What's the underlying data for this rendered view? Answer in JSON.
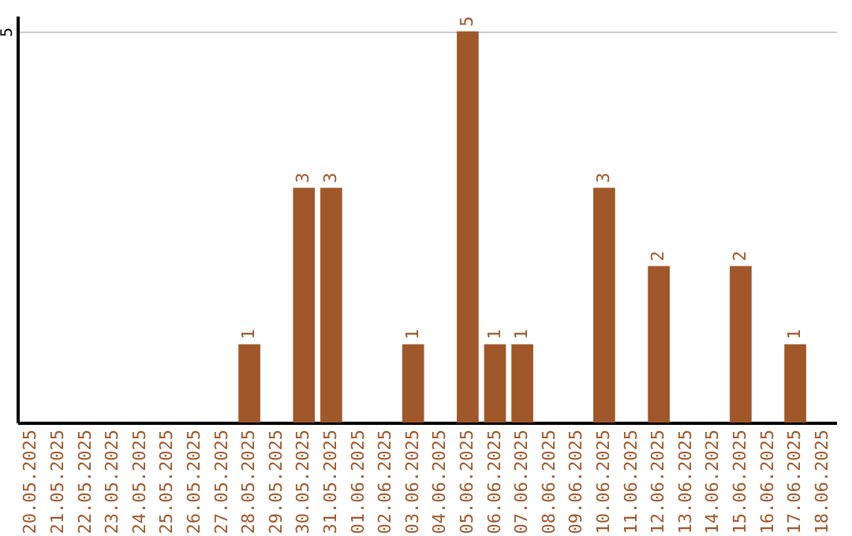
{
  "chart_data": {
    "type": "bar",
    "categories": [
      "20.05.2025",
      "21.05.2025",
      "22.05.2025",
      "23.05.2025",
      "24.05.2025",
      "25.05.2025",
      "26.05.2025",
      "27.05.2025",
      "28.05.2025",
      "29.05.2025",
      "30.05.2025",
      "31.05.2025",
      "01.06.2025",
      "02.06.2025",
      "03.06.2025",
      "04.06.2025",
      "05.06.2025",
      "06.06.2025",
      "07.06.2025",
      "08.06.2025",
      "09.06.2025",
      "10.06.2025",
      "11.06.2025",
      "12.06.2025",
      "13.06.2025",
      "14.06.2025",
      "15.06.2025",
      "16.06.2025",
      "17.06.2025",
      "18.06.2025"
    ],
    "values": [
      null,
      null,
      null,
      null,
      null,
      null,
      null,
      null,
      1,
      null,
      3,
      3,
      null,
      null,
      1,
      null,
      5,
      1,
      1,
      null,
      null,
      3,
      null,
      2,
      null,
      null,
      2,
      null,
      1,
      null
    ],
    "color": "#a0572a",
    "ylim": [
      0,
      5.2
    ],
    "yticks": [
      5
    ],
    "grid": "y",
    "data_labels": true
  }
}
